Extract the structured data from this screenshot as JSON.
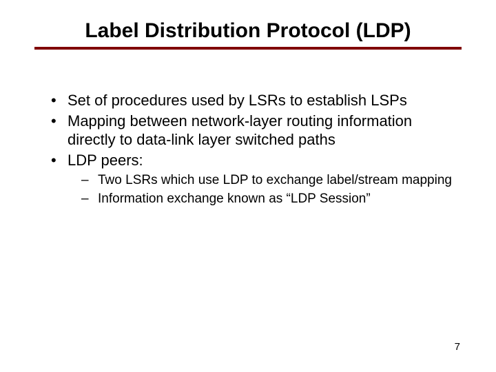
{
  "slide": {
    "title": "Label Distribution Protocol (LDP)",
    "bullets": [
      {
        "text": "Set of procedures used by LSRs to establish LSPs"
      },
      {
        "text": "Mapping between network-layer routing information directly to data-link layer switched paths"
      },
      {
        "text": "LDP peers:",
        "sub": [
          "Two LSRs which use LDP to exchange label/stream mapping",
          "Information exchange known as “LDP Session”"
        ]
      }
    ],
    "page_number": "7",
    "colors": {
      "underline": "#800000",
      "background": "#ffffff",
      "text": "#000000"
    },
    "typography": {
      "title_fontsize": 30,
      "bullet_fontsize": 22,
      "sub_fontsize": 19,
      "pagenum_fontsize": 15,
      "font_family": "Comic Sans MS"
    }
  }
}
